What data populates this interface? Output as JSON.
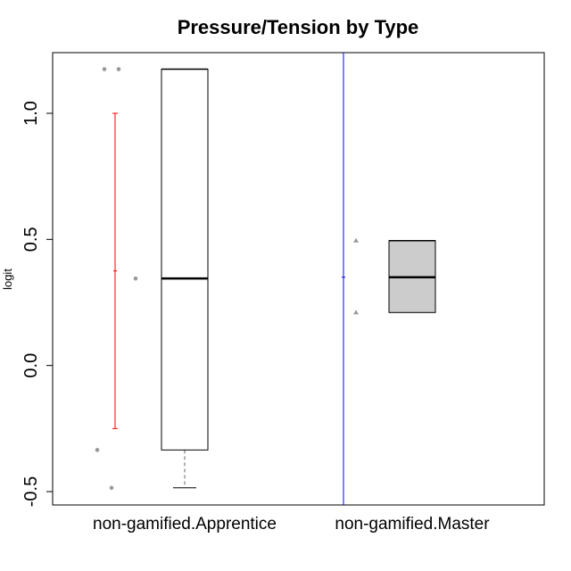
{
  "chart_data": {
    "type": "box",
    "title": "Pressure/Tension by Type",
    "xlabel": "",
    "ylabel": "logit",
    "ylim": [
      -0.55,
      1.25
    ],
    "yticks": [
      "-0.5",
      "0.0",
      "0.5",
      "1.0"
    ],
    "ytick_values": [
      -0.5,
      0.0,
      0.5,
      1.0
    ],
    "grid": false,
    "categories": [
      "non-gamified.Apprentice",
      "non-gamified.Master"
    ],
    "boxes": [
      {
        "category": "non-gamified.Apprentice",
        "min": -0.485,
        "q1": -0.335,
        "median": 0.345,
        "q3": 1.175,
        "max": 1.175,
        "fill": "#ffffff"
      },
      {
        "category": "non-gamified.Master",
        "min": 0.21,
        "q1": 0.21,
        "median": 0.35,
        "q3": 0.495,
        "max": 0.495,
        "fill": "#cccccc"
      }
    ],
    "points": [
      {
        "category": "non-gamified.Apprentice",
        "values": [
          1.175,
          1.175,
          0.345,
          -0.335,
          -0.485
        ],
        "shape": "circle",
        "color": "#999999"
      },
      {
        "category": "non-gamified.Master",
        "values": [
          0.495,
          0.21
        ],
        "shape": "triangle",
        "color": "#999999"
      }
    ],
    "intervals": [
      {
        "category": "non-gamified.Apprentice",
        "center": 0.375,
        "lower": -0.25,
        "upper": 1.0,
        "color": "#ff0000"
      },
      {
        "category": "non-gamified.Master",
        "center": 0.35,
        "lower": null,
        "upper": null,
        "color": "#0000ff",
        "full_height": true
      }
    ]
  }
}
